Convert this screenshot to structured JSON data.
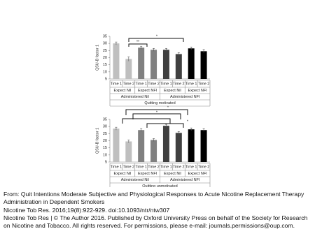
{
  "chart_data": [
    {
      "type": "bar",
      "ylabel": "QSU-B factor 1",
      "categories": [
        "Time 1",
        "Time 2",
        "Time 1",
        "Time 2",
        "Time 1",
        "Time 2",
        "Time 1",
        "Time 2"
      ],
      "groups": [
        "Expect Nil",
        "Expect NFI",
        "Expect Nil",
        "Expect NFI"
      ],
      "supergroups": [
        "Administered Nil",
        "Administered NFI"
      ],
      "topgroup": "Quitting motivated",
      "values": [
        30,
        19,
        27,
        25.5,
        25.5,
        22.5,
        26.5,
        24.5
      ],
      "errors": [
        1,
        1.5,
        1,
        1,
        1,
        1,
        1,
        1.2
      ],
      "colors": [
        "#bfbfbf",
        "#bfbfbf",
        "#808080",
        "#808080",
        "#404040",
        "#404040",
        "#000000",
        "#000000"
      ],
      "ylim": [
        5,
        35
      ],
      "yticks": [
        5,
        10,
        15,
        20,
        25,
        30,
        35
      ],
      "annotations": [
        "*",
        "**"
      ]
    },
    {
      "type": "bar",
      "ylabel": "QSU-B factor 1",
      "categories": [
        "Time 1",
        "Time 2",
        "Time 1",
        "Time 2",
        "Time 1",
        "Time 2",
        "Time 1",
        "Time 2"
      ],
      "groups": [
        "Expect Nil",
        "Expect NFI",
        "Expect Nil",
        "Expect NFI"
      ],
      "supergroups": [
        "Administered Nil",
        "Administered NFI"
      ],
      "topgroup": "Quitting unmotivated",
      "values": [
        28.5,
        19.5,
        27.5,
        20.5,
        30.5,
        25.5,
        28,
        27.5
      ],
      "errors": [
        1,
        1,
        1,
        1,
        1,
        1,
        1,
        1
      ],
      "colors": [
        "#bfbfbf",
        "#bfbfbf",
        "#808080",
        "#808080",
        "#404040",
        "#404040",
        "#000000",
        "#000000"
      ],
      "ylim": [
        5,
        35
      ],
      "yticks": [
        5,
        10,
        15,
        20,
        25,
        30,
        35
      ],
      "annotations": [
        "*",
        "*",
        "*"
      ]
    }
  ],
  "caption": {
    "from": "From: Quit Intentions Moderate Subjective and Physiological Responses to Acute Nicotine Replacement Therapy Administration in Dependent Smokers",
    "citation": "Nicotine Tob Res. 2016;19(8):922-929. doi:10.1093/ntr/ntw307",
    "copyright": "Nicotine Tob Res | © The Author 2016. Published by Oxford University Press on behalf of the Society for Research on Nicotine and Tobacco. All rights reserved. For permissions, please e-mail: journals.permissions@oup.com."
  }
}
